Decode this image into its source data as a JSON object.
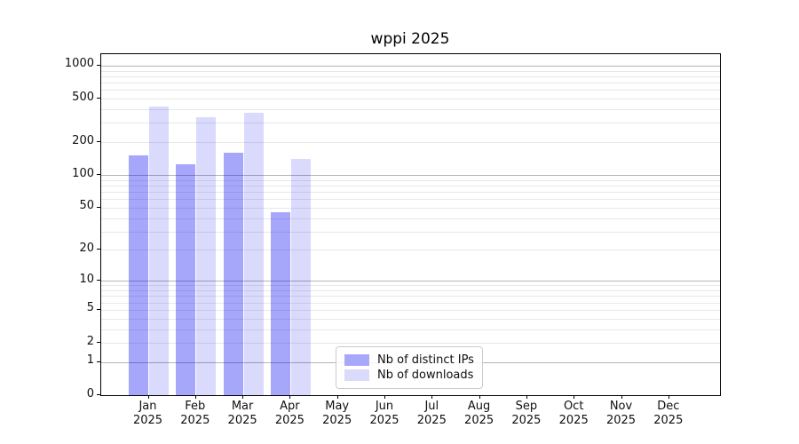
{
  "chart_data": {
    "type": "bar",
    "title": "wppi 2025",
    "categories": [
      "Jan",
      "Feb",
      "Mar",
      "Apr",
      "May",
      "Jun",
      "Jul",
      "Aug",
      "Sep",
      "Oct",
      "Nov",
      "Dec"
    ],
    "x_year_label": "2025",
    "series": [
      {
        "name": "Nb of distinct IPs",
        "color": "#a8a8fa",
        "bar_rgba": "rgba(0,0,240,0.35)",
        "values": [
          150,
          125,
          160,
          45,
          0,
          0,
          0,
          0,
          0,
          0,
          0,
          0
        ]
      },
      {
        "name": "Nb of downloads",
        "color": "#dadafb",
        "bar_rgba": "rgba(0,0,240,0.145)",
        "values": [
          425,
          340,
          370,
          140,
          0,
          0,
          0,
          0,
          0,
          0,
          0,
          0
        ]
      }
    ],
    "yscale": "log1p",
    "ylim": [
      0,
      1270
    ],
    "yticks": [
      0,
      1,
      2,
      5,
      10,
      20,
      50,
      100,
      200,
      500,
      1000
    ],
    "grid": {
      "major_ticks": [
        1,
        10,
        100,
        1000
      ],
      "minor_steps": [
        2,
        3,
        4,
        5,
        6,
        7,
        8,
        9
      ],
      "minor_decades": [
        1,
        10,
        100
      ],
      "major_color": "#b4b4b4",
      "minor_color": "#e8e8e8"
    },
    "legend_position": "lower-center"
  }
}
